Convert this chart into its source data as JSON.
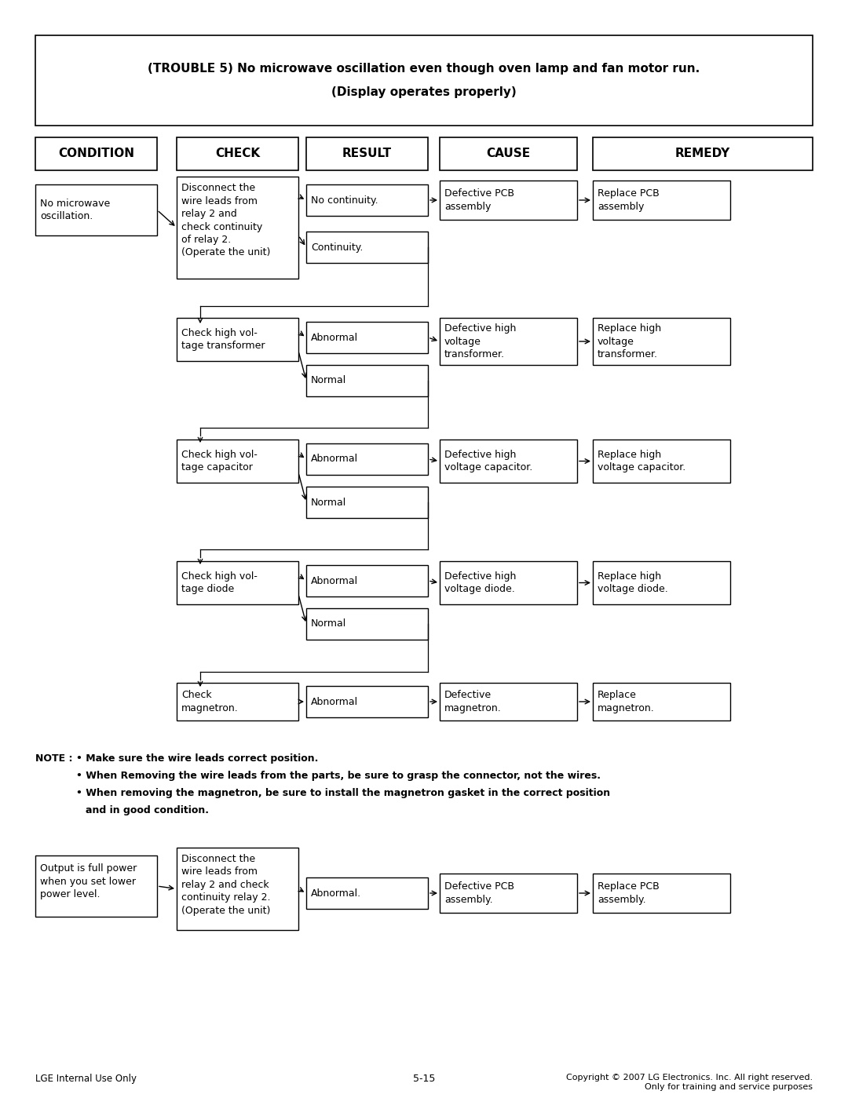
{
  "title_line1": "(TROUBLE 5) No microwave oscillation even though oven lamp and fan motor run.",
  "title_line2": "(Display operates properly)",
  "headers": [
    "CONDITION",
    "CHECK",
    "RESULT",
    "CAUSE",
    "REMEDY"
  ],
  "bg_color": "#ffffff",
  "box_color": "#ffffff",
  "box_edge": "#000000",
  "text_color": "#000000",
  "footer_left": "LGE Internal Use Only",
  "footer_center": "5-15",
  "footer_right": "Copyright © 2007 LG Electronics. Inc. All right reserved.\nOnly for training and service purposes"
}
